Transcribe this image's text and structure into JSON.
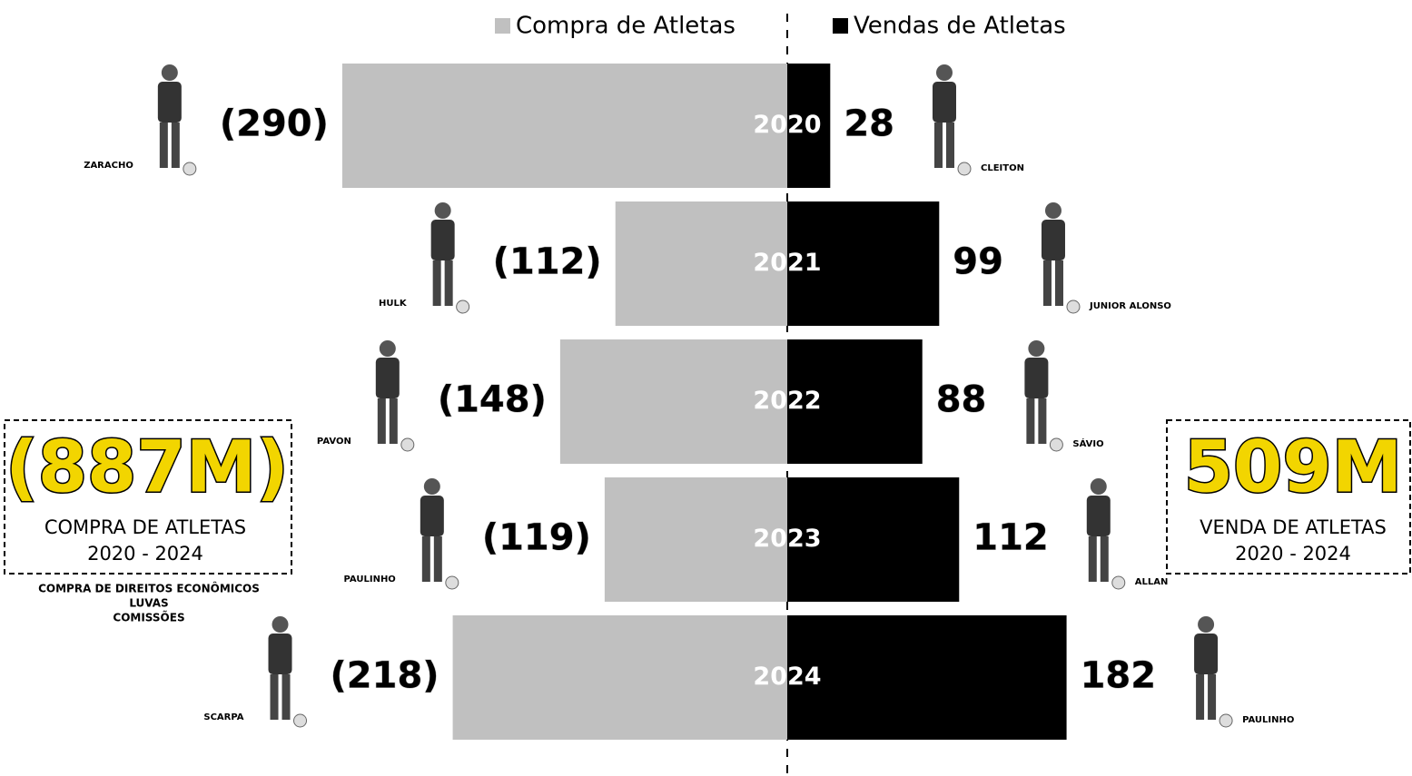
{
  "chart_data": {
    "type": "diverging_bar",
    "categories": [
      "2020",
      "2021",
      "2022",
      "2023",
      "2024"
    ],
    "series": [
      {
        "name": "Compra de Atletas",
        "color": "#c0c0c0",
        "values": [
          -290,
          -112,
          -148,
          -119,
          -218
        ],
        "value_labels": [
          "(290)",
          "(112)",
          "(148)",
          "(119)",
          "(218)"
        ],
        "players": [
          "ZARACHO",
          "HULK",
          "PAVON",
          "PAULINHO",
          "SCARPA"
        ]
      },
      {
        "name": "Vendas de Atletas",
        "color": "#000000",
        "values": [
          28,
          99,
          88,
          112,
          182
        ],
        "players": [
          "CLEITON",
          "JUNIOR ALONSO",
          "SÁVIO",
          "ALLAN",
          "PAULINHO"
        ]
      }
    ],
    "totals": [
      {
        "value_label": "(887M)",
        "label": "COMPRA DE ATLETAS",
        "period": "2020 - 2024",
        "notes": [
          "COMPRA DE DIREITOS ECONÔMICOS",
          "LUVAS",
          "COMISSÕES"
        ]
      },
      {
        "value_label": "509M",
        "label": "VENDA DE ATLETAS",
        "period": "2020 - 2024"
      }
    ]
  }
}
